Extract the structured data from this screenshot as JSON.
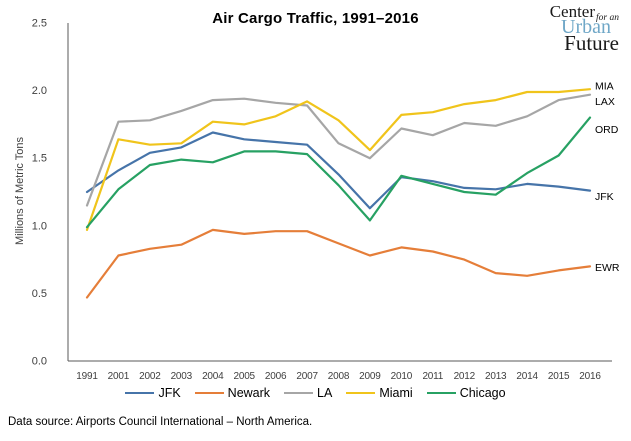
{
  "title": "Air Cargo Traffic, 1991–2016",
  "footer": "Data source: Airports Council International – North America.",
  "logo": {
    "word1": "Center",
    "word2": "for an",
    "word3": "Urban",
    "word4": "Future",
    "urban_color": "#6FA7C7"
  },
  "chart_data": {
    "type": "line",
    "title": "Air Cargo Traffic, 1991–2016",
    "xlabel": "",
    "ylabel": "Millions of Metric Tons",
    "ylim": [
      0,
      2.5
    ],
    "yticks": [
      "0.0",
      "0.5",
      "1.0",
      "1.5",
      "2.0",
      "2.5"
    ],
    "grid": false,
    "legend_position": "bottom",
    "categories": [
      "1991",
      "2001",
      "2002",
      "2003",
      "2004",
      "2005",
      "2006",
      "2007",
      "2008",
      "2009",
      "2010",
      "2011",
      "2012",
      "2013",
      "2014",
      "2015",
      "2016"
    ],
    "series": [
      {
        "name": "JFK",
        "end_label": "JFK",
        "color": "#4674A9",
        "values": [
          1.25,
          1.41,
          1.54,
          1.58,
          1.69,
          1.64,
          1.62,
          1.6,
          1.38,
          1.13,
          1.36,
          1.33,
          1.28,
          1.27,
          1.31,
          1.29,
          1.26
        ]
      },
      {
        "name": "Newark",
        "end_label": "EWR",
        "color": "#E57E39",
        "values": [
          0.47,
          0.78,
          0.83,
          0.86,
          0.97,
          0.94,
          0.96,
          0.96,
          0.87,
          0.78,
          0.84,
          0.81,
          0.75,
          0.65,
          0.63,
          0.67,
          0.7
        ]
      },
      {
        "name": "LA",
        "end_label": "LAX",
        "color": "#A6A6A6",
        "values": [
          1.15,
          1.77,
          1.78,
          1.85,
          1.93,
          1.94,
          1.91,
          1.89,
          1.61,
          1.5,
          1.72,
          1.67,
          1.76,
          1.74,
          1.81,
          1.93,
          1.97
        ]
      },
      {
        "name": "Miami",
        "end_label": "MIA",
        "color": "#F0C41B",
        "values": [
          0.97,
          1.64,
          1.6,
          1.61,
          1.77,
          1.75,
          1.81,
          1.92,
          1.78,
          1.56,
          1.82,
          1.84,
          1.9,
          1.93,
          1.99,
          1.99,
          2.01
        ]
      },
      {
        "name": "Chicago",
        "end_label": "ORD",
        "color": "#27A163",
        "values": [
          0.99,
          1.27,
          1.45,
          1.49,
          1.47,
          1.55,
          1.55,
          1.53,
          1.3,
          1.04,
          1.37,
          1.31,
          1.25,
          1.23,
          1.39,
          1.52,
          1.8
        ]
      }
    ]
  }
}
